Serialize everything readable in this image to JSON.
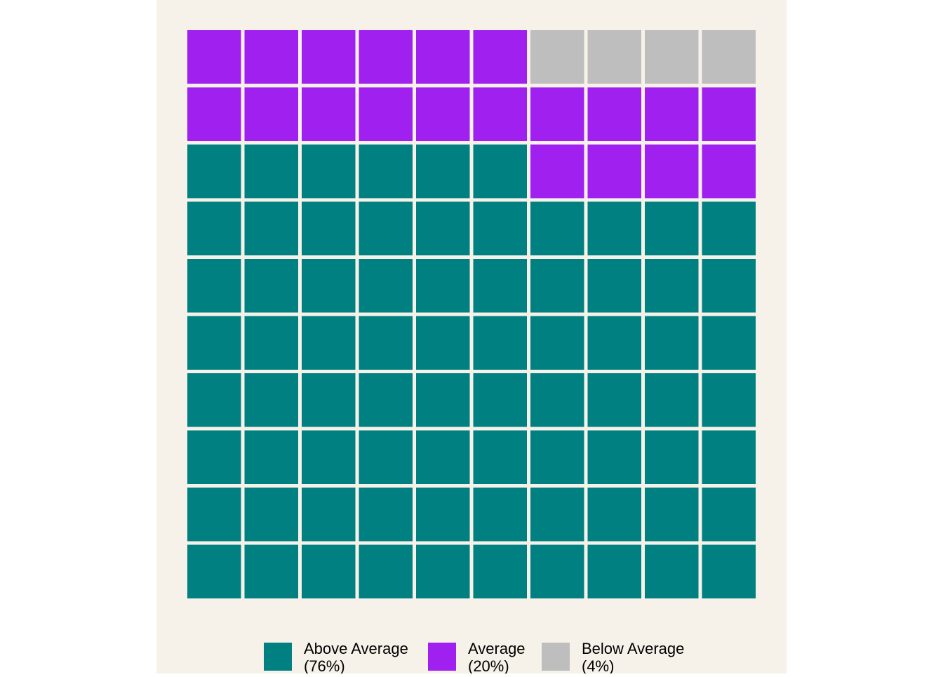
{
  "chart_data": {
    "type": "waffle",
    "categories": [
      "Above Average",
      "Average",
      "Below Average"
    ],
    "values": [
      76,
      20,
      4
    ],
    "value_labels": [
      "(76%)",
      "(20%)",
      "(4%)"
    ],
    "colors": [
      "#008080",
      "#a020f0",
      "#bebebe"
    ]
  }
}
